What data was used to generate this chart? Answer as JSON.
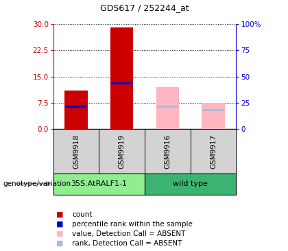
{
  "title": "GDS617 / 252244_at",
  "samples": [
    "GSM9918",
    "GSM9919",
    "GSM9916",
    "GSM9917"
  ],
  "count_values": [
    11.0,
    29.0,
    null,
    null
  ],
  "percentile_values": [
    6.5,
    13.0,
    null,
    null
  ],
  "absent_value_values": [
    null,
    null,
    12.0,
    7.5
  ],
  "absent_rank_values": [
    null,
    null,
    6.5,
    5.5
  ],
  "ylim_left": [
    0,
    30
  ],
  "ylim_right": [
    0,
    100
  ],
  "yticks_left": [
    0,
    7.5,
    15,
    22.5,
    30
  ],
  "yticks_right": [
    0,
    25,
    50,
    75,
    100
  ],
  "left_axis_color": "#CC0000",
  "right_axis_color": "#0000CC",
  "bar_width": 0.5,
  "count_color": "#CC0000",
  "percentile_color": "#0000CC",
  "absent_value_color": "#FFB6C1",
  "absent_rank_color": "#AABBDD",
  "group_label_left": "35S.AtRALF1-1",
  "group_label_right": "wild type",
  "group_color_left": "#90EE90",
  "group_color_right": "#3CB371",
  "legend_items": [
    "count",
    "percentile rank within the sample",
    "value, Detection Call = ABSENT",
    "rank, Detection Call = ABSENT"
  ],
  "legend_colors": [
    "#CC0000",
    "#0000CC",
    "#FFB6C1",
    "#AABBDD"
  ],
  "genotype_label": "genotype/variation"
}
